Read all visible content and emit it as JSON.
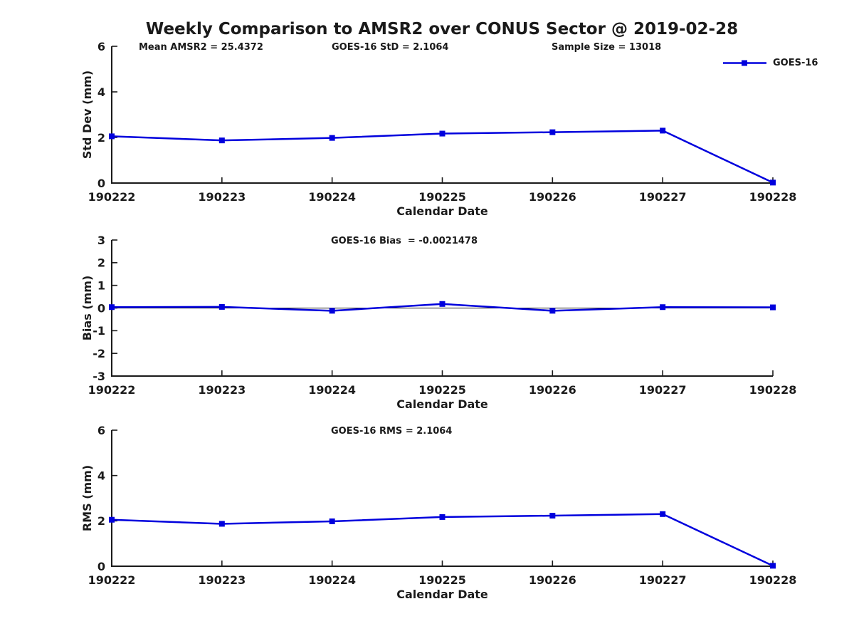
{
  "figure": {
    "title": "Weekly Comparison to AMSR2 over CONUS Sector @ 2019-02-28",
    "background": "#ffffff"
  },
  "legend": {
    "label": "GOES-16"
  },
  "style": {
    "series_color": "#0000dd",
    "axis_color": "#1a1a1a",
    "text_color": "#1a1a1a",
    "zero_line_color": "#1a1a1a"
  },
  "chart_data": [
    {
      "type": "line",
      "id": "std-dev",
      "annotations": [
        "Mean AMSR2 = 25.4372",
        "GOES-16 StD = 2.1064",
        "Sample Size = 13018"
      ],
      "xlabel": "Calendar Date",
      "ylabel": "Std Dev (mm)",
      "categories": [
        "190222",
        "190223",
        "190224",
        "190225",
        "190226",
        "190227",
        "190228"
      ],
      "series": [
        {
          "name": "GOES-16",
          "values": [
            2.05,
            1.87,
            1.98,
            2.17,
            2.23,
            2.3,
            0.02
          ]
        }
      ],
      "ylim": [
        0,
        6
      ],
      "yticks": [
        0,
        2,
        4,
        6
      ],
      "zero_line": false,
      "grid": false,
      "legend_position": "top-right-outside",
      "marker": "square"
    },
    {
      "type": "line",
      "id": "bias",
      "annotations": [
        "GOES-16 Bias  = -0.0021478"
      ],
      "xlabel": "Calendar Date",
      "ylabel": "Bias (mm)",
      "categories": [
        "190222",
        "190223",
        "190224",
        "190225",
        "190226",
        "190227",
        "190228"
      ],
      "series": [
        {
          "name": "GOES-16",
          "values": [
            0.04,
            0.05,
            -0.12,
            0.18,
            -0.12,
            0.04,
            0.03
          ]
        }
      ],
      "ylim": [
        -3,
        3
      ],
      "yticks": [
        -3,
        -2,
        -1,
        0,
        1,
        2,
        3
      ],
      "zero_line": true,
      "grid": false,
      "marker": "square"
    },
    {
      "type": "line",
      "id": "rms",
      "annotations": [
        "GOES-16 RMS = 2.1064"
      ],
      "xlabel": "Calendar Date",
      "ylabel": "RMS (mm)",
      "categories": [
        "190222",
        "190223",
        "190224",
        "190225",
        "190226",
        "190227",
        "190228"
      ],
      "series": [
        {
          "name": "GOES-16",
          "values": [
            2.05,
            1.87,
            1.98,
            2.17,
            2.23,
            2.3,
            0.02
          ]
        }
      ],
      "ylim": [
        0,
        6
      ],
      "yticks": [
        0,
        2,
        4,
        6
      ],
      "zero_line": false,
      "grid": false,
      "marker": "square"
    }
  ]
}
